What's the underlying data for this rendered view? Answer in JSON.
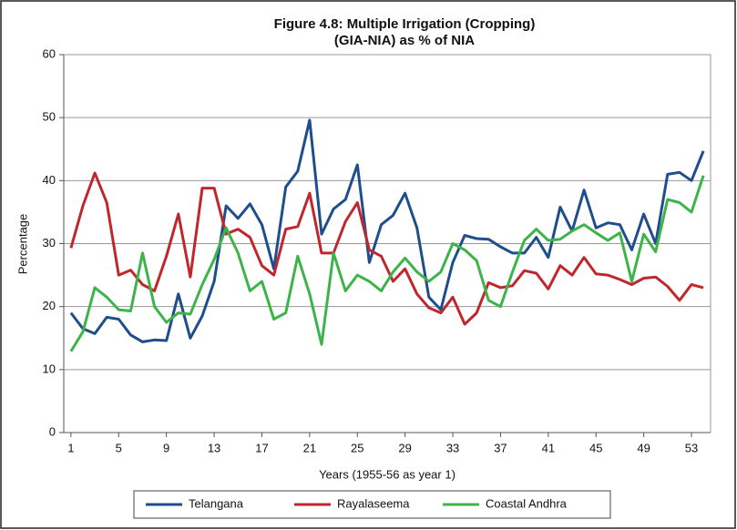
{
  "chart_data": {
    "type": "line",
    "title": [
      "Figure 4.8: Multiple Irrigation (Cropping)",
      "(GIA-NIA) as % of NIA"
    ],
    "x_label": "Years (1955-56 as year 1)",
    "y_label": "Percentage",
    "x": [
      1,
      2,
      3,
      4,
      5,
      6,
      7,
      8,
      9,
      10,
      11,
      12,
      13,
      14,
      15,
      16,
      17,
      18,
      19,
      20,
      21,
      22,
      23,
      24,
      25,
      26,
      27,
      28,
      29,
      30,
      31,
      32,
      33,
      34,
      35,
      36,
      37,
      38,
      39,
      40,
      41,
      42,
      43,
      44,
      45,
      46,
      47,
      48,
      49,
      50,
      51,
      52,
      53,
      54
    ],
    "xlim": [
      0.4,
      54.6
    ],
    "xticks": [
      1,
      5,
      9,
      13,
      17,
      21,
      25,
      29,
      33,
      37,
      41,
      45,
      49,
      53
    ],
    "ylim": [
      0,
      60
    ],
    "yticks": [
      0,
      10,
      20,
      30,
      40,
      50,
      60
    ],
    "grid": true,
    "legend": "bottom",
    "series": [
      {
        "name": "Telangana",
        "color": "#1f4e8c",
        "values": [
          19,
          16.5,
          15.7,
          18.3,
          18,
          15.5,
          14.4,
          14.7,
          14.6,
          22,
          15,
          18.5,
          24,
          36,
          34,
          36.3,
          33,
          26,
          39,
          41.5,
          49.6,
          31.5,
          35.5,
          37,
          42.5,
          27,
          33,
          34.5,
          38,
          32.5,
          21.5,
          19.5,
          27,
          31.3,
          30.8,
          30.7,
          29.5,
          28.5,
          28.5,
          31,
          27.8,
          35.8,
          32,
          38.5,
          32.5,
          33.3,
          33,
          29,
          34.7,
          30,
          41,
          41.3,
          40,
          44.7
        ]
      },
      {
        "name": "Rayalaseema",
        "color": "#c0272d",
        "values": [
          29.3,
          36,
          41.2,
          36.5,
          25,
          25.8,
          23.5,
          22.5,
          28,
          34.7,
          24.7,
          38.8,
          38.8,
          31.5,
          32.3,
          31,
          26.5,
          25,
          32.3,
          32.7,
          38,
          28.5,
          28.5,
          33.5,
          36.5,
          29,
          28,
          24,
          26,
          22,
          19.8,
          19,
          21.5,
          17.2,
          19,
          23.8,
          23,
          23.3,
          25.7,
          25.3,
          22.8,
          26.5,
          25,
          27.8,
          25.2,
          25,
          24.3,
          23.5,
          24.5,
          24.7,
          23.2,
          21,
          23.5,
          23
        ]
      },
      {
        "name": "Coastal Andhra",
        "color": "#3cb44a",
        "values": [
          12.9,
          16,
          23,
          21.5,
          19.5,
          19.3,
          28.5,
          20,
          17.5,
          19,
          18.8,
          23.5,
          27.5,
          32.5,
          28.5,
          22.5,
          24,
          18,
          19,
          28,
          22,
          14,
          28.5,
          22.5,
          25,
          24,
          22.5,
          25.5,
          27.7,
          25.5,
          24,
          25.5,
          30,
          29,
          27.3,
          21,
          20,
          25.5,
          30.5,
          32.3,
          30.5,
          30.7,
          32,
          33,
          31.7,
          30.5,
          31.7,
          24,
          31.5,
          28.7,
          37,
          36.5,
          35,
          40.8
        ]
      }
    ]
  }
}
